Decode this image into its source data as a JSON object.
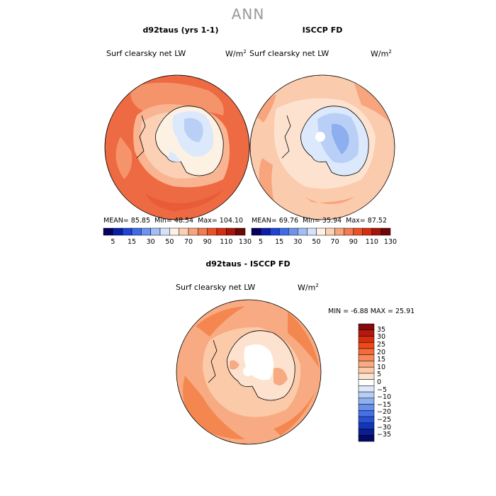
{
  "title": "ANN",
  "panels": [
    {
      "title": "d92taus (yrs 1-1)",
      "variable": "Surf clearsky net LW",
      "units_base": "W/m",
      "units_exp": "2",
      "stats": {
        "mean_label": "MEAN=",
        "mean": "85.85",
        "min_label": "Min=",
        "min": "48.54",
        "max_label": "Max=",
        "max": "104.10"
      }
    },
    {
      "title": "ISCCP FD",
      "variable": "Surf clearsky net LW",
      "units_base": "W/m",
      "units_exp": "2",
      "stats": {
        "mean_label": "MEAN=",
        "mean": "69.76",
        "min_label": "Min=",
        "min": "35.94",
        "max_label": "Max=",
        "max": "87.52"
      }
    },
    {
      "title": "d92taus - ISCCP FD",
      "variable": "Surf clearsky net LW",
      "units_base": "W/m",
      "units_exp": "2",
      "stats": {
        "min_label": "MIN =",
        "min": "-6.88",
        "max_label": "MAX =",
        "max": "25.91"
      }
    }
  ],
  "horizontal_colorbar": {
    "colors": [
      "#08005e",
      "#0a1fa8",
      "#1f44d6",
      "#3e6ce8",
      "#6d93ef",
      "#a3bdf5",
      "#d4e2fb",
      "#fdf1e4",
      "#fbd0b4",
      "#f8a47c",
      "#f47a50",
      "#ec5026",
      "#d62e0e",
      "#a8140a",
      "#6e0606"
    ],
    "labels": [
      "5",
      "15",
      "30",
      "50",
      "70",
      "90",
      "110",
      "130"
    ]
  },
  "vertical_colorbar": {
    "colors_top_to_bottom": [
      "#850b0b",
      "#b5180f",
      "#d4300f",
      "#ec4a1c",
      "#f46a38",
      "#f6895a",
      "#f9aa82",
      "#fbcaa9",
      "#fde3cf",
      "#ffffff",
      "#dbe7fb",
      "#b7cdf5",
      "#8eaff0",
      "#6890eb",
      "#4471e3",
      "#2752d6",
      "#1535b8",
      "#0a1e92",
      "#050a66"
    ],
    "labels": [
      "35",
      "30",
      "25",
      "20",
      "15",
      "10",
      "5",
      "0",
      "−5",
      "−10",
      "−15",
      "−20",
      "−25",
      "−30",
      "−35"
    ]
  },
  "map_colors": {
    "ocean_model": "#ee6a43",
    "ocean_model_light": "#f5946a",
    "ocean_model_pale": "#f9b592",
    "ocean_obs": "#fbcbae",
    "ocean_obs_mid": "#f8a47c",
    "ocean_diff": "#f4874f",
    "ocean_diff_light": "#f8ab82",
    "ice_pale": "#dce8fb",
    "ice_mid": "#b9cff6",
    "ice_deep": "#8dafef",
    "coast": "#000000"
  }
}
